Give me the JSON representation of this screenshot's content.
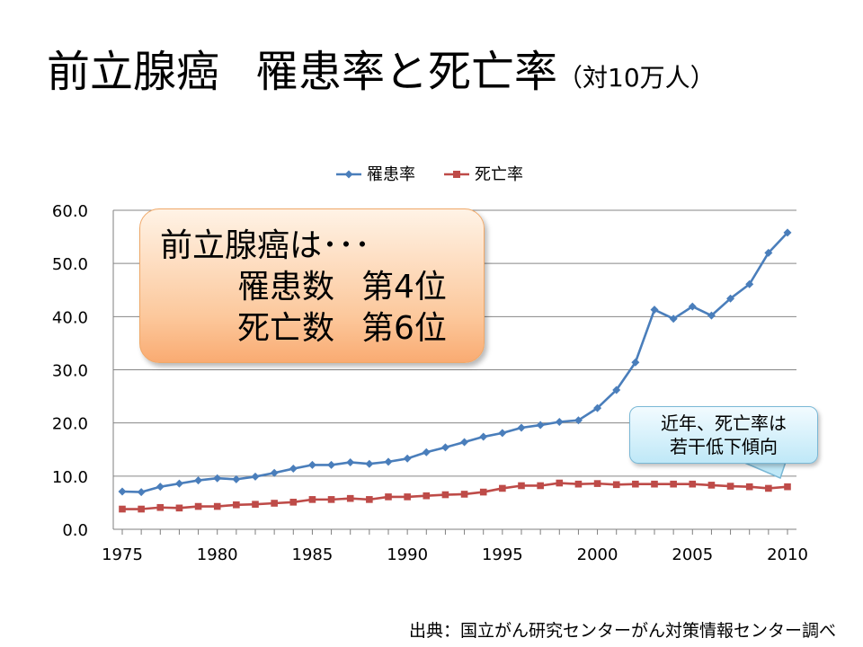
{
  "slide": {
    "title": "前立腺癌",
    "title_part2": "罹患率と死亡率",
    "title_unit": "（対10万人）",
    "callout_main": {
      "line1": "前立腺癌は･･･",
      "line2_label": "罹患数",
      "line2_value": "第4位",
      "line3_label": "死亡数",
      "line3_value": "第6位"
    },
    "callout_note": {
      "line1": "近年、死亡率は",
      "line2": "若干低下傾向"
    },
    "source": "出典：国立がん研究センターがん対策情報センター調べ"
  },
  "chart_data": {
    "type": "line",
    "x": [
      1975,
      1976,
      1977,
      1978,
      1979,
      1980,
      1981,
      1982,
      1983,
      1984,
      1985,
      1986,
      1987,
      1988,
      1989,
      1990,
      1991,
      1992,
      1993,
      1994,
      1995,
      1996,
      1997,
      1998,
      1999,
      2000,
      2001,
      2002,
      2003,
      2004,
      2005,
      2006,
      2007,
      2008,
      2009,
      2010
    ],
    "series": [
      {
        "name": "罹患率",
        "color": "#4a7ebb",
        "marker": "diamond",
        "values": [
          7.1,
          7.0,
          8.0,
          8.6,
          9.2,
          9.6,
          9.4,
          9.9,
          10.6,
          11.4,
          12.1,
          12.1,
          12.6,
          12.3,
          12.7,
          13.3,
          14.5,
          15.4,
          16.4,
          17.4,
          18.1,
          19.1,
          19.6,
          20.2,
          20.5,
          22.8,
          26.2,
          31.4,
          41.3,
          39.6,
          41.9,
          40.2,
          43.4,
          46.1,
          52.0,
          55.8
        ]
      },
      {
        "name": "死亡率",
        "color": "#be4b48",
        "marker": "square",
        "values": [
          3.8,
          3.8,
          4.1,
          4.0,
          4.3,
          4.3,
          4.6,
          4.7,
          4.9,
          5.1,
          5.6,
          5.6,
          5.8,
          5.6,
          6.1,
          6.1,
          6.3,
          6.5,
          6.6,
          7.0,
          7.7,
          8.2,
          8.2,
          8.7,
          8.5,
          8.6,
          8.4,
          8.5,
          8.5,
          8.5,
          8.5,
          8.3,
          8.1,
          8.0,
          7.7,
          8.0
        ]
      }
    ],
    "xticks": [
      1975,
      1980,
      1985,
      1990,
      1995,
      2000,
      2005,
      2010
    ],
    "yticks": [
      "0.0",
      "10.0",
      "20.0",
      "30.0",
      "40.0",
      "50.0",
      "60.0"
    ],
    "ylim": [
      0,
      60
    ],
    "xlim": [
      1975,
      2010
    ],
    "grid": true,
    "legend_position": "top-center"
  }
}
